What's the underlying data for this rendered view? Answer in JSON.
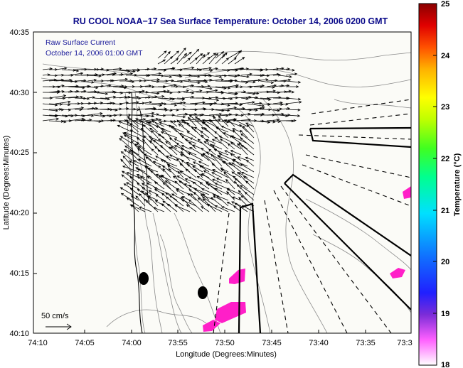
{
  "header": {
    "title": "RU COOL  NOAA−17  Sea Surface Temperature:  October 14, 2006 0200 GMT"
  },
  "legend": {
    "line1": "Raw Surface Current",
    "line2": "October 14, 2006 01:00 GMT",
    "scale_label": "50 cm/s"
  },
  "axes": {
    "xlabel": "Longitude (Degrees:Minutes)",
    "ylabel": "Latitude (Degrees:Minutes)",
    "xticks": [
      "74:10",
      "74:05",
      "74:00",
      "73:55",
      "73:50",
      "73:45",
      "73:40",
      "73:35",
      "73:3"
    ],
    "yticks": [
      "40:35",
      "40:30",
      "40:25",
      "40:20",
      "40:15",
      "40:10"
    ]
  },
  "colorbar": {
    "label": "Temperature (°C)",
    "ticks": [
      "25",
      "24",
      "23",
      "22",
      "21",
      "20",
      "19",
      "18"
    ],
    "min": 18,
    "max": 25
  },
  "colors": {
    "title": "#0a0a8a",
    "land": "#fbfbf7",
    "sst_patch": "#ff1fc8",
    "contour": "#8a8a8a"
  }
}
